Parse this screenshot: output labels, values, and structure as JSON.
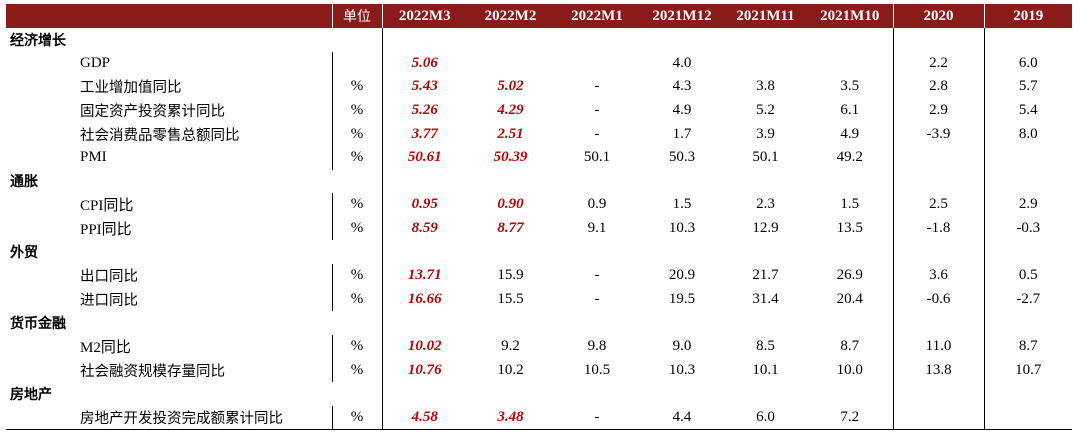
{
  "header": {
    "indicator": "",
    "unit": "单位",
    "columns": [
      "2022M3",
      "2022M2",
      "2022M1",
      "2021M12",
      "2021M11",
      "2021M10",
      "2020",
      "2019"
    ]
  },
  "sections": [
    {
      "category": "经济增长",
      "rows": [
        {
          "name": "GDP",
          "unit": "",
          "values": [
            "5.06",
            "",
            "",
            "4.0",
            "",
            "",
            "2.2",
            "6.0"
          ]
        },
        {
          "name": "工业增加值同比",
          "unit": "%",
          "values": [
            "5.43",
            "5.02",
            "-",
            "4.3",
            "3.8",
            "3.5",
            "2.8",
            "5.7"
          ]
        },
        {
          "name": "固定资产投资累计同比",
          "unit": "%",
          "values": [
            "5.26",
            "4.29",
            "-",
            "4.9",
            "5.2",
            "6.1",
            "2.9",
            "5.4"
          ]
        },
        {
          "name": "社会消费品零售总额同比",
          "unit": "%",
          "values": [
            "3.77",
            "2.51",
            "-",
            "1.7",
            "3.9",
            "4.9",
            "-3.9",
            "8.0"
          ]
        },
        {
          "name": "PMI",
          "unit": "%",
          "values": [
            "50.61",
            "50.39",
            "50.1",
            "50.3",
            "50.1",
            "49.2",
            "",
            ""
          ]
        }
      ]
    },
    {
      "category": "通胀",
      "rows": [
        {
          "name": "CPI同比",
          "unit": "%",
          "values": [
            "0.95",
            "0.90",
            "0.9",
            "1.5",
            "2.3",
            "1.5",
            "2.5",
            "2.9"
          ]
        },
        {
          "name": "PPI同比",
          "unit": "%",
          "values": [
            "8.59",
            "8.77",
            "9.1",
            "10.3",
            "12.9",
            "13.5",
            "-1.8",
            "-0.3"
          ]
        }
      ]
    },
    {
      "category": "外贸",
      "rows": [
        {
          "name": "出口同比",
          "unit": "%",
          "values": [
            "13.71",
            "15.9",
            "-",
            "20.9",
            "21.7",
            "26.9",
            "3.6",
            "0.5"
          ]
        },
        {
          "name": "进口同比",
          "unit": "%",
          "values": [
            "16.66",
            "15.5",
            "-",
            "19.5",
            "31.4",
            "20.4",
            "-0.6",
            "-2.7"
          ]
        }
      ]
    },
    {
      "category": "货币金融",
      "rows": [
        {
          "name": "M2同比",
          "unit": "%",
          "values": [
            "10.02",
            "9.2",
            "9.8",
            "9.0",
            "8.5",
            "8.7",
            "11.0",
            "8.7"
          ]
        },
        {
          "name": "社会融资规模存量同比",
          "unit": "%",
          "values": [
            "10.76",
            "10.2",
            "10.5",
            "10.3",
            "10.1",
            "10.0",
            "13.8",
            "10.7"
          ]
        }
      ]
    },
    {
      "category": "房地产",
      "rows": [
        {
          "name": "房地产开发投资完成额累计同比",
          "unit": "%",
          "values": [
            "4.58",
            "3.48",
            "-",
            "4.4",
            "6.0",
            "7.2",
            "",
            ""
          ]
        }
      ]
    }
  ],
  "highlight_color": "#C00000",
  "header_color": "#8B1A1A"
}
